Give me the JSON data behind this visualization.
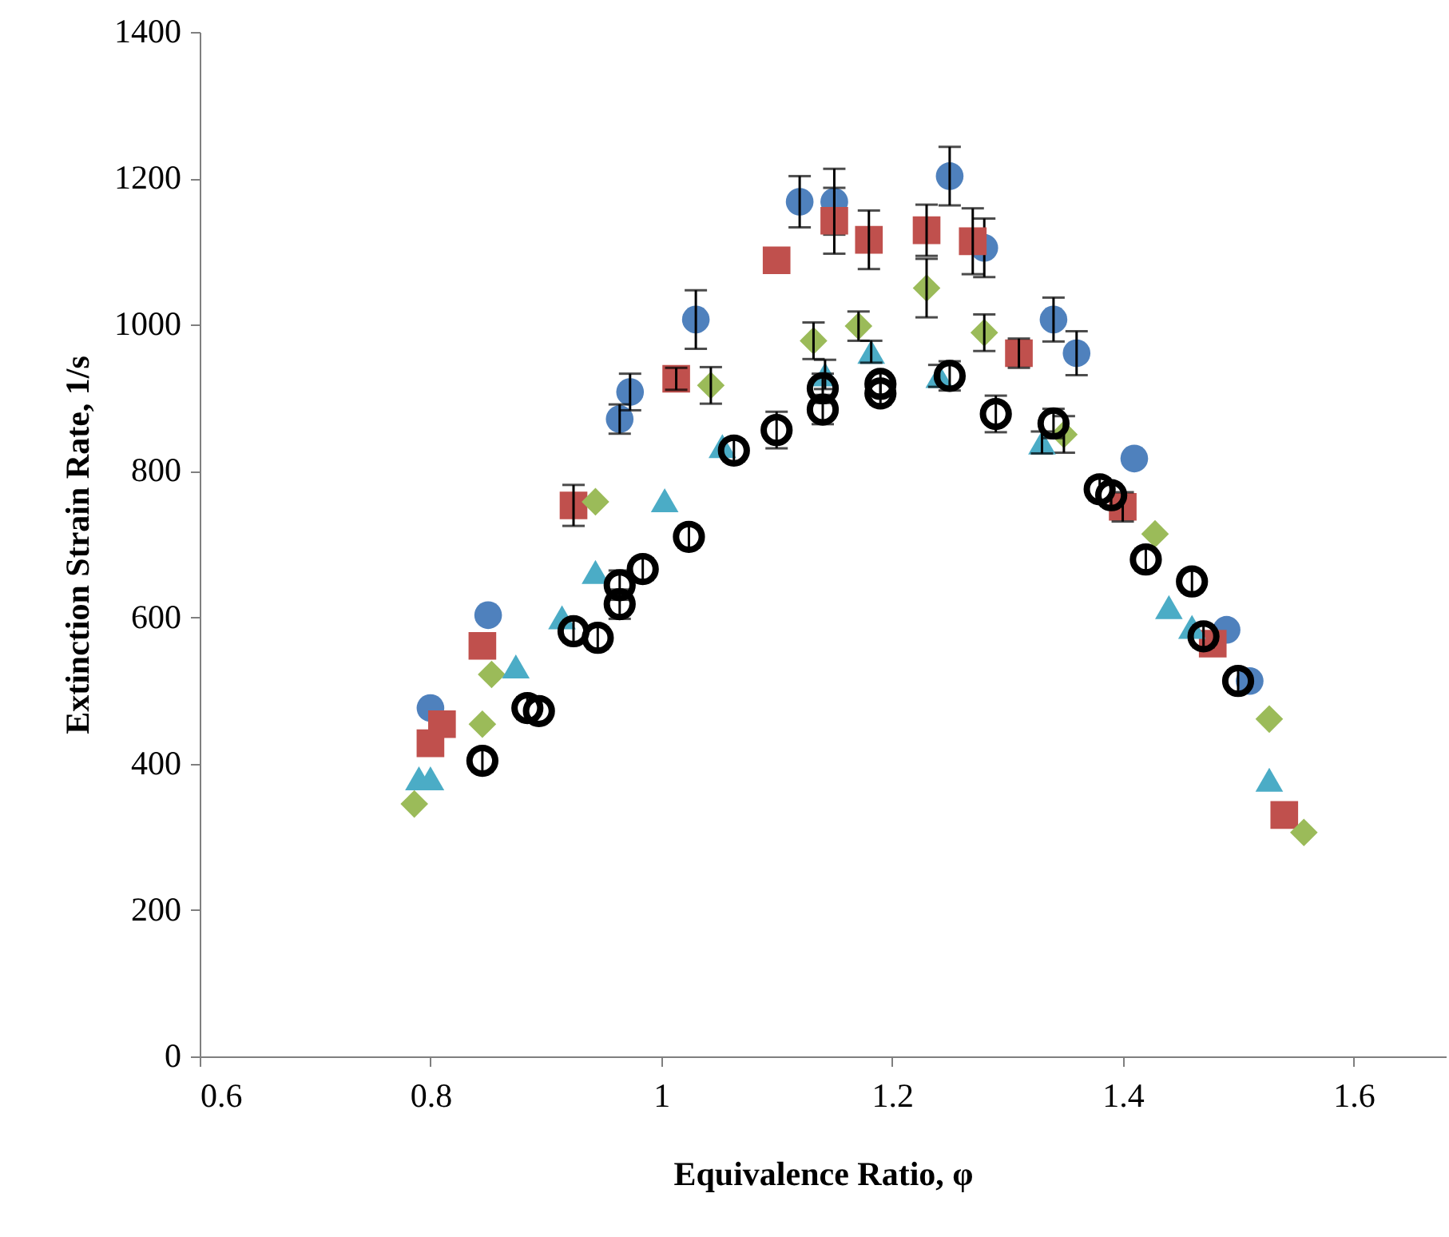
{
  "chart_data": {
    "type": "scatter",
    "xlabel": "Equivalence Ratio, φ",
    "ylabel": "Extinction Strain Rate, 1/s",
    "xlim": [
      0.6,
      1.68
    ],
    "xticks": [
      0.6,
      0.8,
      1,
      1.2,
      1.4,
      1.6
    ],
    "ylim": [
      0,
      1400
    ],
    "yticks": [
      0,
      200,
      400,
      600,
      800,
      1000,
      1200,
      1400
    ],
    "grid": false,
    "series": [
      {
        "color": "#4f81bd",
        "marker": "circle",
        "x": [
          0.8,
          0.85,
          0.964,
          0.973,
          1.03,
          1.12,
          1.15,
          1.25,
          1.28,
          1.34,
          1.36,
          1.41,
          1.49,
          1.51
        ],
        "values": [
          476,
          603,
          871,
          908,
          1007,
          1168,
          1168,
          1203,
          1105,
          1007,
          961,
          817,
          583,
          513
        ],
        "errors": [
          null,
          null,
          20,
          25,
          40,
          35,
          45,
          40,
          40,
          30,
          30,
          null,
          null,
          null
        ]
      },
      {
        "color": "#c0504d",
        "marker": "square",
        "x": [
          0.8,
          0.81,
          0.845,
          0.924,
          1.013,
          1.1,
          1.15,
          1.18,
          1.23,
          1.27,
          1.31,
          1.4,
          1.478,
          1.54
        ],
        "values": [
          428,
          454,
          561,
          753,
          926,
          1088,
          1142,
          1116,
          1129,
          1114,
          961,
          751,
          564,
          330
        ],
        "errors": [
          null,
          null,
          null,
          28,
          15,
          null,
          45,
          40,
          35,
          45,
          20,
          20,
          null,
          null
        ]
      },
      {
        "color": "#9bbb59",
        "marker": "diamond",
        "x": [
          0.786,
          0.845,
          0.853,
          0.943,
          1.043,
          1.132,
          1.171,
          1.23,
          1.28,
          1.349,
          1.428,
          1.527,
          1.557
        ],
        "values": [
          345,
          454,
          522,
          758,
          917,
          978,
          998,
          1050,
          989,
          850,
          714,
          461,
          306
        ],
        "errors": [
          null,
          null,
          null,
          null,
          25,
          25,
          20,
          40,
          25,
          25,
          null,
          null,
          null
        ]
      },
      {
        "color": "#4bacc6",
        "marker": "triangle",
        "x": [
          0.79,
          0.8,
          0.874,
          0.914,
          0.943,
          1.003,
          1.053,
          1.142,
          1.182,
          1.241,
          1.33,
          1.44,
          1.46,
          1.527
        ],
        "values": [
          380,
          380,
          533,
          600,
          662,
          760,
          834,
          932,
          963,
          930,
          839,
          614,
          587,
          378
        ],
        "errors": [
          null,
          null,
          null,
          null,
          null,
          null,
          null,
          20,
          15,
          15,
          15,
          null,
          null,
          null
        ]
      },
      {
        "color": "#000000",
        "marker": "circle-open",
        "x": [
          0.845,
          0.884,
          0.894,
          0.924,
          0.945,
          0.964,
          0.964,
          0.984,
          1.024,
          1.063,
          1.1,
          1.14,
          1.14,
          1.19,
          1.19,
          1.25,
          1.29,
          1.34,
          1.38,
          1.39,
          1.42,
          1.46,
          1.47,
          1.5
        ],
        "values": [
          404,
          476,
          472,
          581,
          572,
          644,
          618,
          666,
          710,
          828,
          856,
          913,
          884,
          919,
          906,
          930,
          878,
          865,
          775,
          767,
          679,
          649,
          574,
          513
        ],
        "errors": [
          15,
          15,
          null,
          15,
          15,
          20,
          20,
          15,
          15,
          15,
          25,
          20,
          20,
          15,
          15,
          20,
          25,
          20,
          15,
          15,
          15,
          15,
          15,
          15
        ]
      }
    ]
  }
}
